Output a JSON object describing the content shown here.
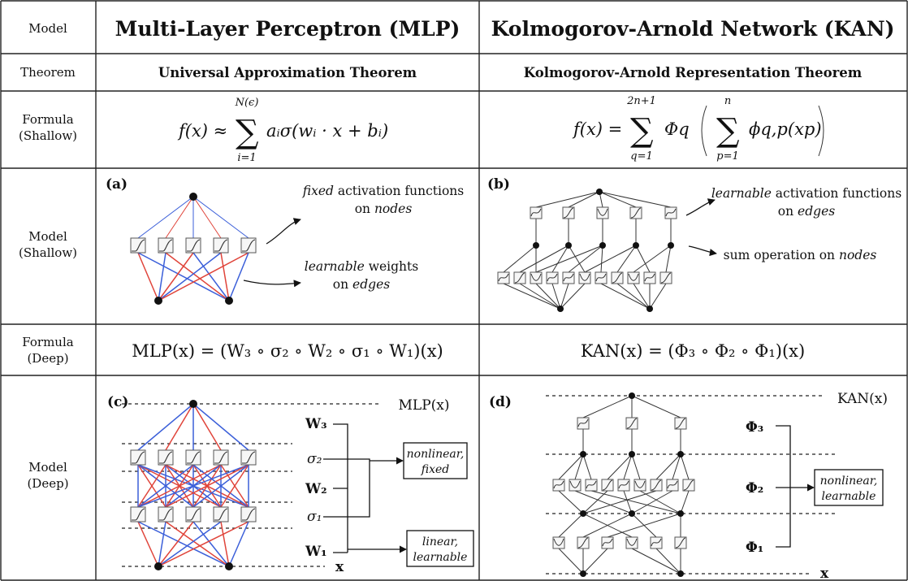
{
  "row_labels": {
    "model": "Model",
    "theorem": "Theorem",
    "formula_shallow_1": "Formula",
    "formula_shallow_2": "(Shallow)",
    "model_shallow_1": "Model",
    "model_shallow_2": "(Shallow)",
    "formula_deep_1": "Formula",
    "formula_deep_2": "(Deep)",
    "model_deep_1": "Model",
    "model_deep_2": "(Deep)"
  },
  "mlp": {
    "title": "Multi-Layer Perceptron (MLP)",
    "theorem": "Universal Approximation Theorem",
    "formula_shallow": {
      "lhs": "f(x) ≈",
      "sum_upper": "N(ϵ)",
      "sum_lower": "i=1",
      "body": "aᵢσ(wᵢ · x + bᵢ)"
    },
    "panel_a": {
      "letter": "(a)",
      "note1_a": "fixed",
      "note1_b": " activation functions",
      "note1_c": "on ",
      "note1_d": "nodes",
      "note2_a": "learnable",
      "note2_b": " weights",
      "note2_c": "on ",
      "note2_d": "edges"
    },
    "formula_deep": "MLP(x) = (W₃ ∘ σ₂ ∘ W₂ ∘ σ₁ ∘ W₁)(x)",
    "panel_c": {
      "letter": "(c)",
      "output": "MLP(x)",
      "input": "x",
      "layers": [
        "W₃",
        "σ₂",
        "W₂",
        "σ₁",
        "W₁"
      ],
      "box1_l1": "nonlinear,",
      "box1_l2": "fixed",
      "box2_l1": "linear,",
      "box2_l2": "learnable"
    }
  },
  "kan": {
    "title": "Kolmogorov-Arnold Network (KAN)",
    "theorem": "Kolmogorov-Arnold Representation Theorem",
    "formula_shallow": {
      "lhs": "f(x) =",
      "sum1_upper": "2n+1",
      "sum1_lower": "q=1",
      "phi_outer": "Φq",
      "sum2_upper": "n",
      "sum2_lower": "p=1",
      "phi_inner": "ϕq,p(xp)"
    },
    "panel_b": {
      "letter": "(b)",
      "note1_a": "learnable",
      "note1_b": " activation functions",
      "note1_c": "on ",
      "note1_d": "edges",
      "note2_a": "sum operation on ",
      "note2_b": "nodes"
    },
    "formula_deep": "KAN(x) = (Φ₃ ∘ Φ₂ ∘ Φ₁)(x)",
    "panel_d": {
      "letter": "(d)",
      "output": "KAN(x)",
      "input": "x",
      "layers": [
        "Φ₃",
        "Φ₂",
        "Φ₁"
      ],
      "box_l1": "nonlinear,",
      "box_l2": "learnable"
    }
  },
  "colors": {
    "blue_edge": "#3b5fd9",
    "red_edge": "#e0443a"
  }
}
